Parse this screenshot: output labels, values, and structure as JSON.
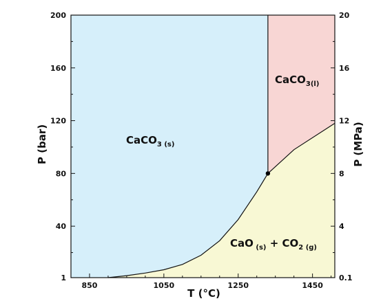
{
  "chart_data": {
    "type": "area",
    "xlabel": "T (°C)",
    "ylabel_left": "P (bar)",
    "ylabel_right": "P (MPa)",
    "xlim": [
      800,
      1510
    ],
    "ylim": [
      1,
      200
    ],
    "x_ticks": [
      "850",
      "1050",
      "1250",
      "1450"
    ],
    "y_ticks_left": [
      "1",
      "40",
      "80",
      "120",
      "160",
      "200"
    ],
    "y_ticks_right": [
      "0.1",
      "4",
      "8",
      "12",
      "16",
      "20"
    ],
    "regions": [
      {
        "name_main": "CaCO",
        "name_sub3": "3",
        "name_sub": " (s)",
        "color": "#d6effa"
      },
      {
        "name_main": "CaCO",
        "name_sub3": "3(l)",
        "color": "#f8d6d4"
      },
      {
        "name_main": "CaO",
        "name_sub": " (s)",
        "name_mid": " + CO",
        "name_sub2": "2 (g)",
        "color": "#f8f8d4"
      }
    ],
    "triple_point": {
      "T": 1330,
      "P": 80
    },
    "boundaries": {
      "decomposition_curve": [
        [
          900,
          1
        ],
        [
          950,
          2.5
        ],
        [
          1000,
          4.5
        ],
        [
          1050,
          7
        ],
        [
          1100,
          11
        ],
        [
          1150,
          18
        ],
        [
          1200,
          29
        ],
        [
          1250,
          45
        ],
        [
          1300,
          66
        ],
        [
          1330,
          80
        ]
      ],
      "melting_line": [
        [
          1330,
          80
        ],
        [
          1330,
          200
        ]
      ],
      "liquid_boundary": [
        [
          1330,
          80
        ],
        [
          1400,
          98
        ],
        [
          1510,
          118
        ]
      ]
    }
  }
}
